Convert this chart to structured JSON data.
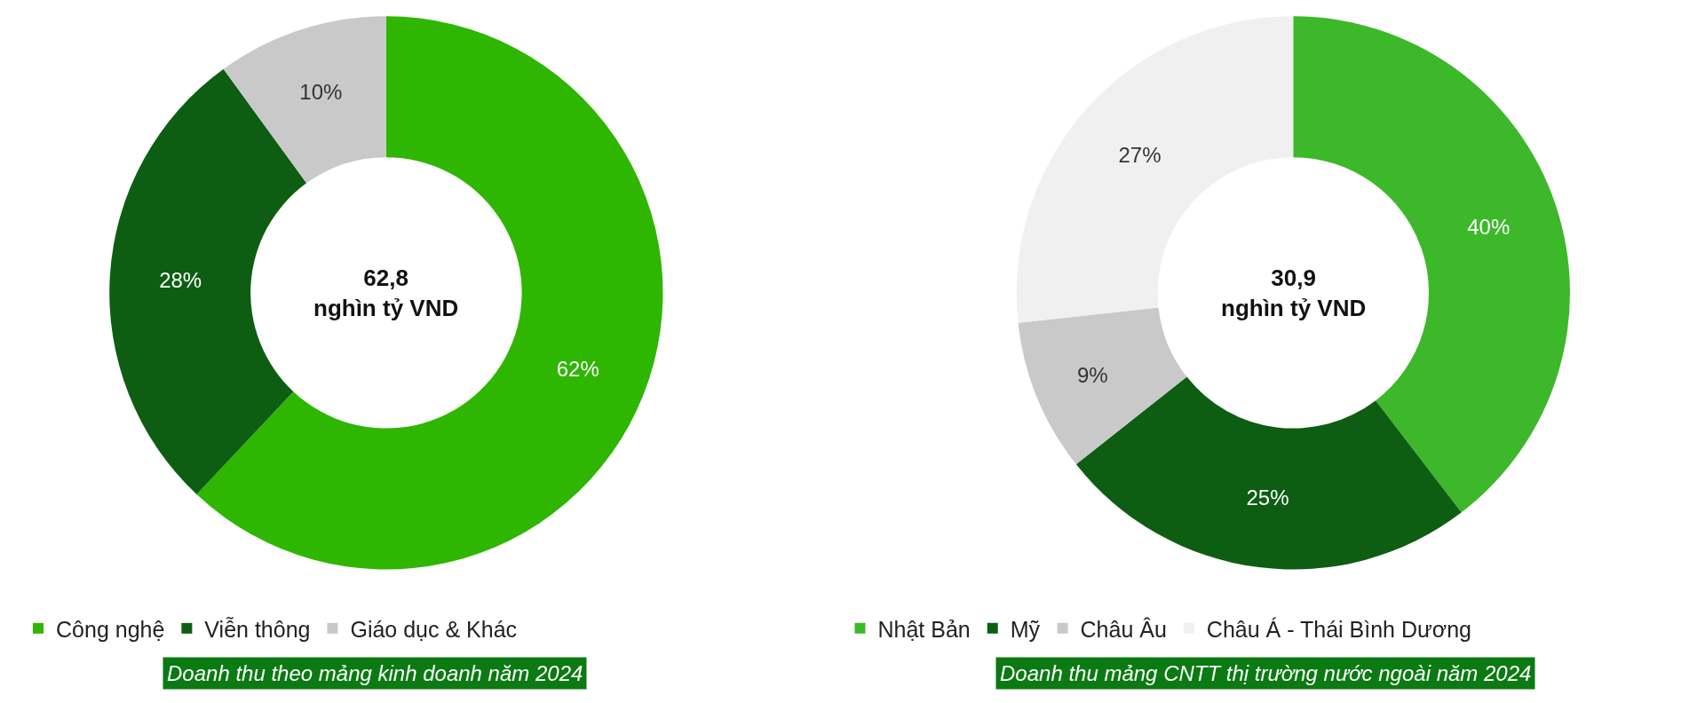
{
  "chart_data": [
    {
      "type": "donut",
      "categories": [
        "Công nghệ",
        "Viễn thông",
        "Giáo dục & Khác"
      ],
      "values": [
        62,
        28,
        10
      ],
      "colors": [
        "#2eb600",
        "#0d5e12",
        "#c9c9c9"
      ],
      "value_labels": [
        "62%",
        "28%",
        "10%"
      ],
      "legend": "bottom",
      "annotations": [
        "62,8\nnghìn tỷ VND",
        "Doanh thu theo mảng kinh doanh năm 2024"
      ]
    },
    {
      "type": "donut",
      "categories": [
        "Nhật Bản",
        "Mỹ",
        "Châu Âu",
        "Châu Á - Thái Bình Dương"
      ],
      "values": [
        40,
        25,
        9,
        27
      ],
      "colors": [
        "#3db82a",
        "#0d5e12",
        "#c9c9c9",
        "#f0f0f0"
      ],
      "value_labels": [
        "40%",
        "25%",
        "9%",
        "27%"
      ],
      "legend": "bottom",
      "annotations": [
        "30,9\nnghìn tỷ VND",
        "Doanh thu mảng CNTT thị trường nước ngoài năm 2024"
      ]
    }
  ]
}
